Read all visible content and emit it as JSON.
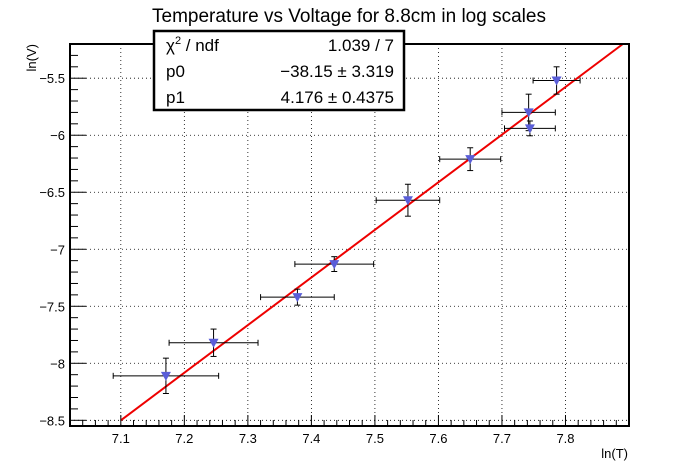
{
  "chart_data": {
    "type": "scatter",
    "title": "Temperature vs Voltage for 8.8cm in log scales",
    "xlabel": "ln(T)",
    "ylabel": "ln(V)",
    "xlim": [
      7.02,
      7.9
    ],
    "ylim": [
      -8.55,
      -5.2
    ],
    "x_ticks": [
      7.1,
      7.2,
      7.3,
      7.4,
      7.5,
      7.6,
      7.7,
      7.8
    ],
    "y_ticks": [
      -8.5,
      -8,
      -7.5,
      -7,
      -6.5,
      -6,
      -5.5
    ],
    "x_tick_labels": [
      "7.1",
      "7.2",
      "7.3",
      "7.4",
      "7.5",
      "7.6",
      "7.7",
      "7.8"
    ],
    "y_tick_labels": [
      "−8.5",
      "−8",
      "−7.5",
      "−7",
      "−6.5",
      "−6",
      "−5.5"
    ],
    "grid": true,
    "points": [
      {
        "x": 7.171,
        "y": -8.11,
        "xerr": 0.083,
        "yerr": 0.155
      },
      {
        "x": 7.246,
        "y": -7.82,
        "xerr": 0.07,
        "yerr": 0.12
      },
      {
        "x": 7.378,
        "y": -7.42,
        "xerr": 0.058,
        "yerr": 0.07
      },
      {
        "x": 7.436,
        "y": -7.13,
        "xerr": 0.062,
        "yerr": 0.065
      },
      {
        "x": 7.552,
        "y": -6.57,
        "xerr": 0.05,
        "yerr": 0.14
      },
      {
        "x": 7.65,
        "y": -6.21,
        "xerr": 0.048,
        "yerr": 0.1
      },
      {
        "x": 7.742,
        "y": -5.8,
        "xerr": 0.042,
        "yerr": 0.16
      },
      {
        "x": 7.744,
        "y": -5.94,
        "xerr": 0.04,
        "yerr": 0.065
      },
      {
        "x": 7.786,
        "y": -5.52,
        "xerr": 0.037,
        "yerr": 0.12
      }
    ],
    "fit": {
      "p0": -38.15,
      "p1": 4.176,
      "x_range": [
        7.1,
        7.9
      ]
    },
    "marker_color": "#5a5ed8",
    "fit_color": "#ee0000",
    "stats_box": {
      "rows": [
        {
          "label_main": "χ",
          "label_sup": "2",
          "label_rest": " / ndf",
          "value": "1.039 / 7"
        },
        {
          "label_main": "p0",
          "label_sup": "",
          "label_rest": "",
          "value": "−38.15 ± 3.319"
        },
        {
          "label_main": "p1",
          "label_sup": "",
          "label_rest": "",
          "value": "4.176 ± 0.4375"
        }
      ]
    }
  }
}
